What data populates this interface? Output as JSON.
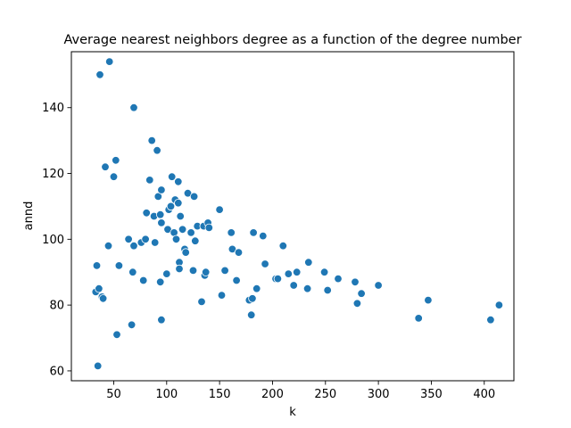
{
  "chart_data": {
    "type": "scatter",
    "title": "Average nearest neighbors degree as a function of the degree number",
    "xlabel": "k",
    "ylabel": "annd",
    "xlim": [
      10,
      428
    ],
    "ylim": [
      57,
      157
    ],
    "xticks": [
      50,
      100,
      150,
      200,
      250,
      300,
      350,
      400
    ],
    "yticks": [
      60,
      80,
      100,
      120,
      140
    ],
    "grid": false,
    "legend": "none",
    "marker_color": "#1f77b4",
    "points": [
      [
        33,
        84
      ],
      [
        34,
        92
      ],
      [
        35,
        61.5
      ],
      [
        36,
        85
      ],
      [
        37,
        150
      ],
      [
        39,
        82.5
      ],
      [
        40,
        82
      ],
      [
        42,
        122
      ],
      [
        45,
        98
      ],
      [
        46,
        154
      ],
      [
        50,
        119
      ],
      [
        52,
        124
      ],
      [
        53,
        71
      ],
      [
        55,
        92
      ],
      [
        64,
        100
      ],
      [
        67,
        74
      ],
      [
        68,
        90
      ],
      [
        69,
        98
      ],
      [
        69,
        140
      ],
      [
        76,
        99
      ],
      [
        78,
        87.5
      ],
      [
        80,
        100
      ],
      [
        81,
        108
      ],
      [
        84,
        118
      ],
      [
        86,
        130
      ],
      [
        88,
        107
      ],
      [
        89,
        99
      ],
      [
        91,
        127
      ],
      [
        92,
        113
      ],
      [
        94,
        87
      ],
      [
        94,
        107.5
      ],
      [
        95,
        115
      ],
      [
        95,
        105
      ],
      [
        95,
        75.5
      ],
      [
        100,
        89.5
      ],
      [
        101,
        103
      ],
      [
        102,
        109
      ],
      [
        104,
        110
      ],
      [
        105,
        119
      ],
      [
        107,
        102
      ],
      [
        108,
        112
      ],
      [
        109,
        100
      ],
      [
        111,
        117.5
      ],
      [
        111,
        111
      ],
      [
        112,
        93
      ],
      [
        112,
        91
      ],
      [
        113,
        107
      ],
      [
        115,
        103
      ],
      [
        117,
        97
      ],
      [
        118,
        96
      ],
      [
        120,
        114
      ],
      [
        123,
        102
      ],
      [
        125,
        90.5
      ],
      [
        126,
        113
      ],
      [
        127,
        99.5
      ],
      [
        129,
        104
      ],
      [
        133,
        81
      ],
      [
        135,
        104
      ],
      [
        136,
        89
      ],
      [
        137,
        90
      ],
      [
        139,
        105
      ],
      [
        140,
        103.5
      ],
      [
        150,
        109
      ],
      [
        152,
        83
      ],
      [
        155,
        90.5
      ],
      [
        161,
        102
      ],
      [
        162,
        97
      ],
      [
        166,
        87.5
      ],
      [
        168,
        96
      ],
      [
        178,
        81.5
      ],
      [
        180,
        77
      ],
      [
        181,
        82
      ],
      [
        182,
        102
      ],
      [
        185,
        85
      ],
      [
        191,
        101
      ],
      [
        193,
        92.5
      ],
      [
        203,
        88
      ],
      [
        205,
        88
      ],
      [
        210,
        98
      ],
      [
        215,
        89.5
      ],
      [
        220,
        86
      ],
      [
        223,
        90
      ],
      [
        233,
        85
      ],
      [
        234,
        93
      ],
      [
        249,
        90
      ],
      [
        252,
        84.5
      ],
      [
        262,
        88
      ],
      [
        278,
        87
      ],
      [
        280,
        80.5
      ],
      [
        284,
        83.5
      ],
      [
        300,
        86
      ],
      [
        338,
        76
      ],
      [
        347,
        81.5
      ],
      [
        406,
        75.5
      ],
      [
        414,
        80
      ]
    ]
  }
}
